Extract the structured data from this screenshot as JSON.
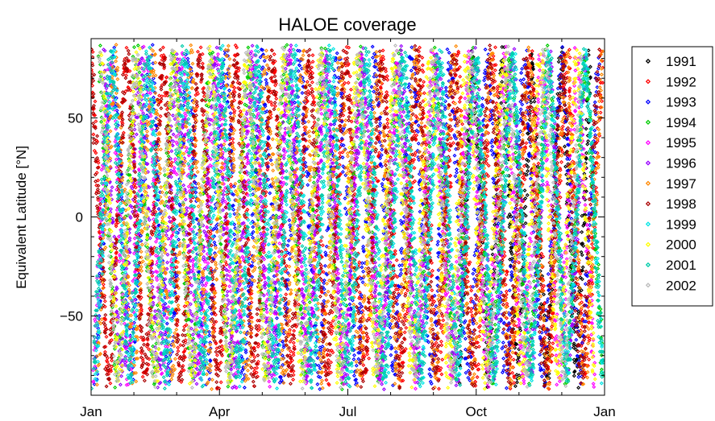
{
  "chart_data": {
    "type": "scatter",
    "title": "HALOE coverage",
    "xlabel": "",
    "ylabel": "Equivalent Latitude [°N]",
    "x_unit": "month",
    "xlim": [
      0,
      12
    ],
    "ylim": [
      -90,
      90
    ],
    "x_ticks": [
      {
        "value": 0,
        "label": "Jan"
      },
      {
        "value": 3,
        "label": "Apr"
      },
      {
        "value": 6,
        "label": "Jul"
      },
      {
        "value": 9,
        "label": "Oct"
      },
      {
        "value": 12,
        "label": "Jan"
      }
    ],
    "x_minor_ticks": [
      1,
      2,
      4,
      5,
      7,
      8,
      10,
      11
    ],
    "y_ticks": [
      {
        "value": 50,
        "label": "50"
      },
      {
        "value": 0,
        "label": "0"
      },
      {
        "value": -50,
        "label": "−50"
      }
    ],
    "y_minor_ticks": [
      -80,
      -70,
      -60,
      -40,
      -30,
      -20,
      -10,
      10,
      20,
      30,
      40,
      60,
      70,
      80
    ],
    "grid": false,
    "legend_position": "outside-right",
    "marker": "diamond",
    "series": [
      {
        "name": "1991",
        "color": "#000000",
        "sweeps": [
          [
            8.6,
            11.7,
            9
          ]
        ]
      },
      {
        "name": "1992",
        "color": "#ff0000",
        "sweeps": [
          [
            0.0,
            12.0,
            28
          ]
        ]
      },
      {
        "name": "1993",
        "color": "#0000ff",
        "sweeps": [
          [
            0.1,
            11.9,
            27
          ]
        ]
      },
      {
        "name": "1994",
        "color": "#00cc00",
        "sweeps": [
          [
            0.2,
            12.0,
            27
          ]
        ]
      },
      {
        "name": "1995",
        "color": "#ff00ff",
        "sweeps": [
          [
            0.05,
            11.8,
            28
          ]
        ]
      },
      {
        "name": "1996",
        "color": "#9900ff",
        "sweeps": [
          [
            0.3,
            11.6,
            26
          ]
        ]
      },
      {
        "name": "1997",
        "color": "#ff8800",
        "sweeps": [
          [
            0.15,
            12.0,
            27
          ]
        ]
      },
      {
        "name": "1998",
        "color": "#aa0000",
        "sweeps": [
          [
            0.0,
            11.9,
            28
          ]
        ]
      },
      {
        "name": "1999",
        "color": "#00e5e5",
        "sweeps": [
          [
            0.1,
            12.0,
            28
          ]
        ]
      },
      {
        "name": "2000",
        "color": "#ffff00",
        "sweeps": [
          [
            0.25,
            11.8,
            27
          ]
        ]
      },
      {
        "name": "2001",
        "color": "#00ccaa",
        "sweeps": [
          [
            0.05,
            12.0,
            28
          ]
        ]
      },
      {
        "name": "2002",
        "color": "#bbbbbb",
        "sweeps": [
          [
            0.2,
            11.5,
            26
          ]
        ]
      }
    ]
  }
}
